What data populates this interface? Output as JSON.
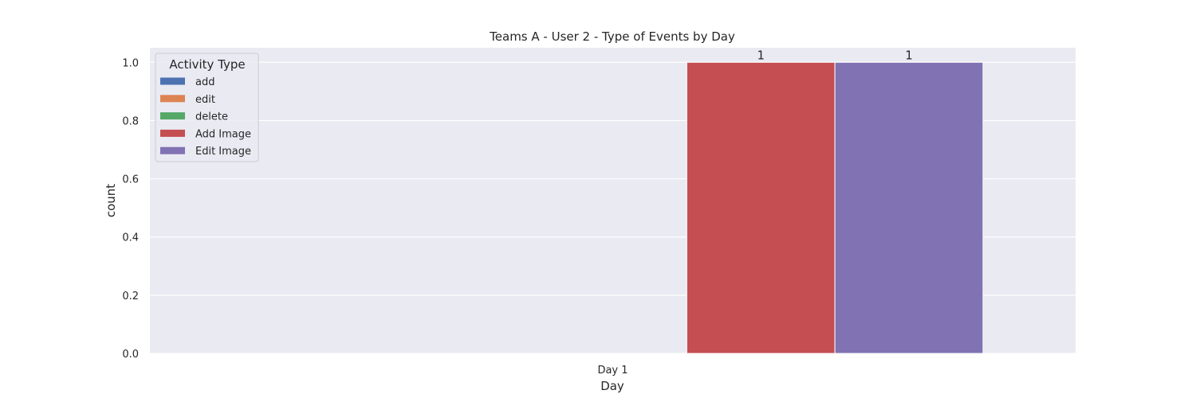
{
  "chart_data": {
    "type": "bar",
    "title": "Teams A - User 2 - Type of Events by Day",
    "xlabel": "Day",
    "ylabel": "count",
    "categories": [
      "Day 1"
    ],
    "ylim": [
      0,
      1.05
    ],
    "yticks": [
      "0.0",
      "0.2",
      "0.4",
      "0.6",
      "0.8",
      "1.0"
    ],
    "grid": true,
    "legend_title": "Activity Type",
    "legend_position": "top-left",
    "series": [
      {
        "name": "add",
        "color": "#4c72b0",
        "values": [
          0
        ]
      },
      {
        "name": "edit",
        "color": "#dd8452",
        "values": [
          0
        ]
      },
      {
        "name": "delete",
        "color": "#55a868",
        "values": [
          0
        ]
      },
      {
        "name": "Add Image",
        "color": "#c44e52",
        "values": [
          1
        ]
      },
      {
        "name": "Edit Image",
        "color": "#8172b3",
        "values": [
          1
        ]
      }
    ],
    "data_labels": [
      "1",
      "1"
    ]
  }
}
